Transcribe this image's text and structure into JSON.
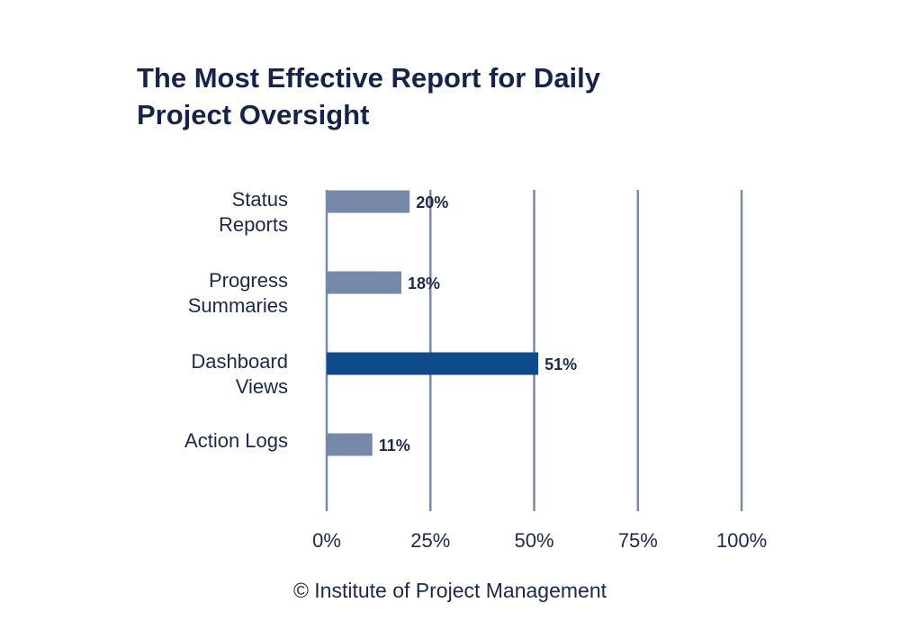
{
  "header": {
    "title_line1": "The Most Effective Report for Daily",
    "title_line2": "Project Oversight"
  },
  "footer": {
    "credit": "© Institute of Project Management"
  },
  "colors": {
    "bar": "#7789a8",
    "highlight": "#0f4a8a",
    "grid": "#7a8aa6",
    "text": "#1b2a49",
    "title": "#16244a"
  },
  "chart_data": {
    "type": "bar",
    "orientation": "horizontal",
    "title": "The Most Effective Report for Daily Project Oversight",
    "categories": [
      [
        "Status",
        "Reports"
      ],
      [
        "Progress",
        "Summaries"
      ],
      [
        "Dashboard",
        "Views"
      ],
      [
        "Action Logs"
      ]
    ],
    "values": [
      20,
      18,
      51,
      11
    ],
    "value_labels": [
      "20%",
      "18%",
      "51%",
      "11%"
    ],
    "highlight_index": 2,
    "xlim": [
      0,
      100
    ],
    "xticks": [
      0,
      25,
      50,
      75,
      100
    ],
    "xtick_labels": [
      "0%",
      "25%",
      "50%",
      "75%",
      "100%"
    ],
    "grid": true,
    "legend": "none"
  }
}
